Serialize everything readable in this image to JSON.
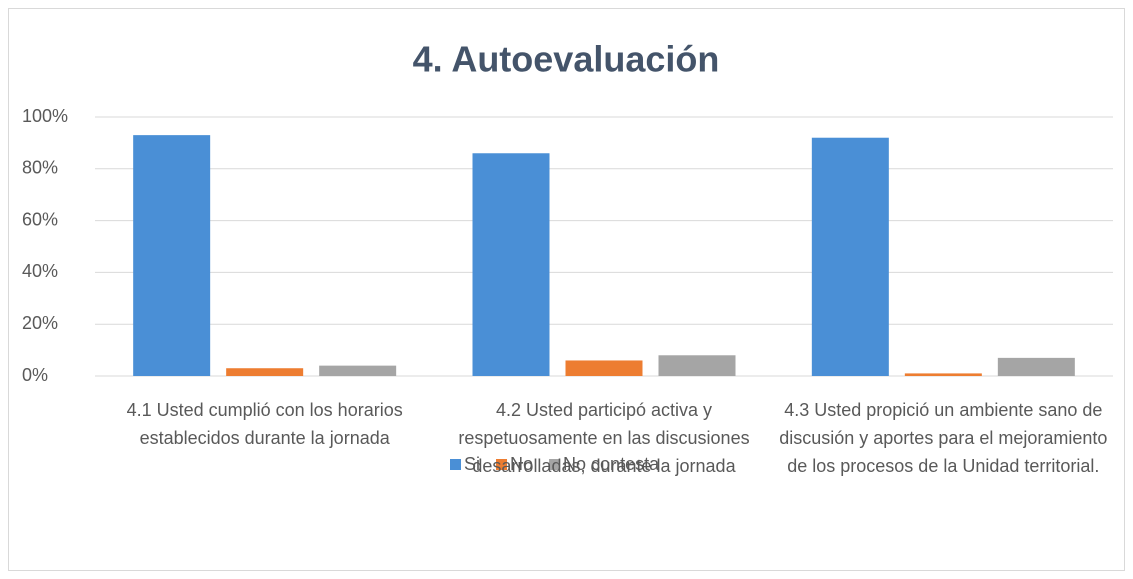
{
  "chart_data": {
    "type": "bar",
    "title": "4. Autoevaluación",
    "categories": [
      "4.1 Usted cumplió con los horarios establecidos durante la jornada",
      "4.2 Usted participó activa y respetuosamente en las discusiones desarrolladas, durante la jornada",
      "4.3 Usted propició un ambiente sano de discusión y aportes para el mejoramiento de los procesos de la Unidad territorial."
    ],
    "series": [
      {
        "name": "Si",
        "color": "#4a8fd6",
        "values": [
          93,
          86,
          92
        ]
      },
      {
        "name": "No",
        "color": "#ed7d31",
        "values": [
          3,
          6,
          1
        ]
      },
      {
        "name": "No contesta",
        "color": "#a5a5a5",
        "values": [
          4,
          8,
          7
        ]
      }
    ],
    "ylim": [
      0,
      100
    ],
    "yticks": [
      {
        "value": 0,
        "label": "0%"
      },
      {
        "value": 20,
        "label": "20%"
      },
      {
        "value": 40,
        "label": "40%"
      },
      {
        "value": 60,
        "label": "60%"
      },
      {
        "value": 80,
        "label": "80%"
      },
      {
        "value": 100,
        "label": "100%"
      }
    ],
    "grid": true,
    "legend": "bottom"
  }
}
